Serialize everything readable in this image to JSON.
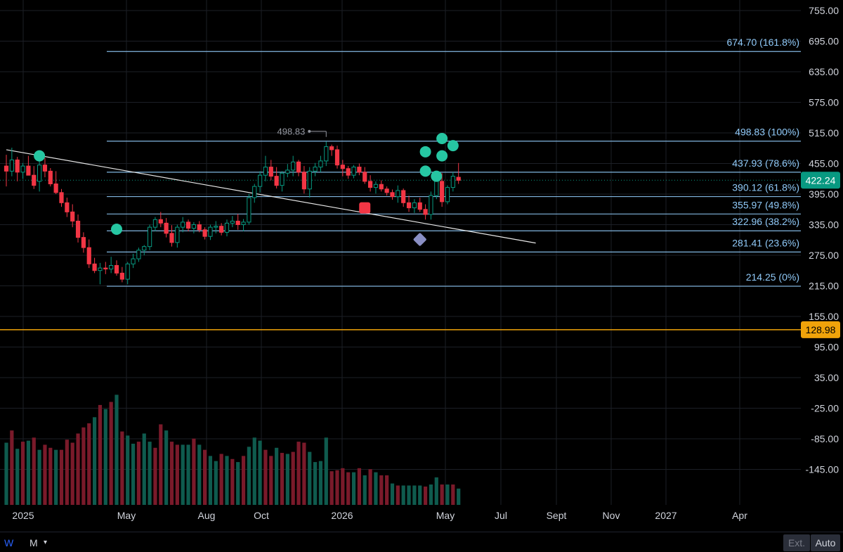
{
  "chart_data": {
    "type": "candlestick",
    "title": "",
    "xlabel": "",
    "ylabel": "",
    "x_ticks": [
      "2025",
      "May",
      "Aug",
      "Oct",
      "2026",
      "May",
      "Jul",
      "Sept",
      "Nov",
      "2027",
      "Apr"
    ],
    "y_ticks": [
      "755.00",
      "695.00",
      "635.00",
      "575.00",
      "515.00",
      "455.00",
      "395.00",
      "335.00",
      "275.00",
      "215.00",
      "155.00",
      "95.00",
      "35.00",
      "-25.00",
      "-85.00",
      "-145.00"
    ],
    "ylim": [
      -170,
      770
    ],
    "grid": true,
    "last_price": "422.24",
    "last_price_color": "#089981",
    "horizontal_line": {
      "value": "128.98",
      "color": "#f0a30a"
    },
    "fibonacci_levels": [
      {
        "label": "674.70 (161.8%)",
        "value": 674.7
      },
      {
        "label": "498.83 (100%)",
        "value": 498.83
      },
      {
        "label": "437.93 (78.6%)",
        "value": 437.93
      },
      {
        "label": "390.12 (61.8%)",
        "value": 390.12
      },
      {
        "label": "355.97 (49.8%)",
        "value": 355.97
      },
      {
        "label": "322.96 (38.2%)",
        "value": 322.96
      },
      {
        "label": "281.41 (23.6%)",
        "value": 281.41
      },
      {
        "label": "214.25 (0%)",
        "value": 214.25
      }
    ],
    "high_annotation": {
      "label": "498.83",
      "value": 498.83
    },
    "trendline": {
      "from": [
        0,
        482
      ],
      "to": [
        96,
        299
      ]
    },
    "candles": [
      [
        0,
        450,
        472,
        410,
        440
      ],
      [
        1,
        440,
        486,
        430,
        462
      ],
      [
        2,
        462,
        468,
        420,
        438
      ],
      [
        3,
        438,
        456,
        425,
        450
      ],
      [
        4,
        450,
        470,
        435,
        432
      ],
      [
        5,
        432,
        450,
        405,
        412
      ],
      [
        6,
        420,
        470,
        400,
        452
      ],
      [
        7,
        452,
        466,
        428,
        440
      ],
      [
        8,
        440,
        446,
        410,
        415
      ],
      [
        9,
        415,
        440,
        395,
        398
      ],
      [
        10,
        398,
        405,
        370,
        378
      ],
      [
        11,
        378,
        388,
        350,
        360
      ],
      [
        12,
        360,
        375,
        330,
        342
      ],
      [
        13,
        342,
        355,
        300,
        310
      ],
      [
        14,
        310,
        320,
        280,
        290
      ],
      [
        15,
        290,
        306,
        250,
        258
      ],
      [
        16,
        258,
        270,
        240,
        245
      ],
      [
        17,
        245,
        260,
        218,
        250
      ],
      [
        18,
        250,
        262,
        238,
        248
      ],
      [
        19,
        248,
        272,
        240,
        255
      ],
      [
        20,
        255,
        265,
        235,
        240
      ],
      [
        21,
        240,
        252,
        222,
        228
      ],
      [
        22,
        228,
        262,
        218,
        258
      ],
      [
        23,
        258,
        278,
        250,
        268
      ],
      [
        24,
        268,
        290,
        262,
        285
      ],
      [
        25,
        285,
        295,
        275,
        292
      ],
      [
        26,
        292,
        335,
        285,
        330
      ],
      [
        27,
        330,
        350,
        322,
        345
      ],
      [
        28,
        345,
        360,
        330,
        338
      ],
      [
        29,
        338,
        348,
        310,
        318
      ],
      [
        30,
        318,
        334,
        292,
        300
      ],
      [
        31,
        300,
        335,
        290,
        330
      ],
      [
        32,
        330,
        350,
        320,
        340
      ],
      [
        33,
        340,
        345,
        322,
        328
      ],
      [
        34,
        328,
        340,
        318,
        335
      ],
      [
        35,
        335,
        342,
        320,
        325
      ],
      [
        36,
        325,
        330,
        306,
        312
      ],
      [
        37,
        312,
        335,
        305,
        330
      ],
      [
        38,
        330,
        342,
        318,
        332
      ],
      [
        39,
        332,
        338,
        314,
        320
      ],
      [
        40,
        320,
        345,
        312,
        338
      ],
      [
        41,
        338,
        352,
        330,
        342
      ],
      [
        42,
        342,
        356,
        325,
        335
      ],
      [
        43,
        335,
        346,
        322,
        340
      ],
      [
        44,
        340,
        395,
        335,
        388
      ],
      [
        45,
        388,
        415,
        378,
        410
      ],
      [
        46,
        410,
        440,
        398,
        432
      ],
      [
        47,
        432,
        470,
        420,
        448
      ],
      [
        48,
        448,
        462,
        422,
        430
      ],
      [
        49,
        430,
        448,
        406,
        412
      ],
      [
        50,
        412,
        440,
        400,
        436
      ],
      [
        51,
        436,
        454,
        428,
        442
      ],
      [
        52,
        442,
        470,
        430,
        458
      ],
      [
        53,
        458,
        462,
        430,
        438
      ],
      [
        54,
        438,
        450,
        396,
        405
      ],
      [
        55,
        405,
        448,
        388,
        440
      ],
      [
        56,
        440,
        456,
        430,
        448
      ],
      [
        57,
        448,
        470,
        438,
        460
      ],
      [
        58,
        460,
        498,
        450,
        488
      ],
      [
        59,
        488,
        492,
        470,
        482
      ],
      [
        60,
        482,
        490,
        445,
        452
      ],
      [
        61,
        452,
        462,
        430,
        445
      ],
      [
        62,
        445,
        450,
        425,
        432
      ],
      [
        63,
        432,
        452,
        426,
        448
      ],
      [
        64,
        448,
        455,
        432,
        438
      ],
      [
        65,
        438,
        448,
        415,
        420
      ],
      [
        66,
        420,
        432,
        400,
        408
      ],
      [
        67,
        408,
        420,
        396,
        414
      ],
      [
        68,
        414,
        422,
        400,
        405
      ],
      [
        69,
        405,
        410,
        392,
        398
      ],
      [
        70,
        398,
        404,
        384,
        390
      ],
      [
        71,
        390,
        412,
        378,
        402
      ],
      [
        72,
        402,
        406,
        370,
        378
      ],
      [
        73,
        378,
        392,
        360,
        368
      ],
      [
        74,
        368,
        385,
        358,
        378
      ],
      [
        75,
        378,
        388,
        360,
        365
      ],
      [
        76,
        365,
        375,
        345,
        355
      ],
      [
        77,
        355,
        400,
        345,
        392
      ],
      [
        78,
        392,
        430,
        385,
        420
      ],
      [
        79,
        420,
        436,
        370,
        380
      ],
      [
        80,
        380,
        412,
        375,
        408
      ],
      [
        81,
        408,
        438,
        400,
        430
      ],
      [
        82,
        428,
        456,
        415,
        422
      ]
    ],
    "volume": [
      [
        0,
        1010,
        1
      ],
      [
        1,
        1130,
        0
      ],
      [
        2,
        950,
        1
      ],
      [
        3,
        1020,
        0
      ],
      [
        4,
        1030,
        1
      ],
      [
        5,
        1060,
        0
      ],
      [
        6,
        940,
        1
      ],
      [
        7,
        990,
        0
      ],
      [
        8,
        960,
        0
      ],
      [
        9,
        940,
        1
      ],
      [
        10,
        940,
        0
      ],
      [
        11,
        1040,
        0
      ],
      [
        12,
        1010,
        0
      ],
      [
        13,
        1100,
        0
      ],
      [
        14,
        1160,
        0
      ],
      [
        15,
        1200,
        0
      ],
      [
        16,
        1260,
        1
      ],
      [
        17,
        1380,
        0
      ],
      [
        18,
        1340,
        1
      ],
      [
        19,
        1410,
        0
      ],
      [
        20,
        1480,
        1
      ],
      [
        21,
        1120,
        0
      ],
      [
        22,
        1080,
        1
      ],
      [
        23,
        1000,
        1
      ],
      [
        24,
        1020,
        0
      ],
      [
        25,
        1100,
        1
      ],
      [
        26,
        1020,
        1
      ],
      [
        27,
        960,
        0
      ],
      [
        28,
        1190,
        0
      ],
      [
        29,
        1130,
        1
      ],
      [
        30,
        1020,
        0
      ],
      [
        31,
        990,
        0
      ],
      [
        32,
        990,
        1
      ],
      [
        33,
        990,
        1
      ],
      [
        34,
        1050,
        0
      ],
      [
        35,
        990,
        1
      ],
      [
        36,
        940,
        0
      ],
      [
        37,
        880,
        1
      ],
      [
        38,
        830,
        1
      ],
      [
        39,
        900,
        0
      ],
      [
        40,
        880,
        1
      ],
      [
        41,
        850,
        0
      ],
      [
        42,
        820,
        1
      ],
      [
        43,
        880,
        0
      ],
      [
        44,
        970,
        1
      ],
      [
        45,
        1060,
        1
      ],
      [
        46,
        1030,
        1
      ],
      [
        47,
        940,
        0
      ],
      [
        48,
        880,
        0
      ],
      [
        49,
        960,
        1
      ],
      [
        50,
        910,
        0
      ],
      [
        51,
        900,
        1
      ],
      [
        52,
        920,
        0
      ],
      [
        53,
        1020,
        0
      ],
      [
        54,
        1010,
        0
      ],
      [
        55,
        920,
        1
      ],
      [
        56,
        820,
        1
      ],
      [
        57,
        830,
        1
      ],
      [
        58,
        1060,
        1
      ],
      [
        59,
        730,
        0
      ],
      [
        60,
        740,
        0
      ],
      [
        61,
        760,
        0
      ],
      [
        62,
        720,
        0
      ],
      [
        63,
        720,
        1
      ],
      [
        64,
        760,
        0
      ],
      [
        65,
        690,
        1
      ],
      [
        66,
        750,
        0
      ],
      [
        67,
        720,
        1
      ],
      [
        68,
        690,
        0
      ],
      [
        69,
        690,
        0
      ],
      [
        70,
        610,
        1
      ],
      [
        71,
        590,
        0
      ],
      [
        72,
        590,
        1
      ],
      [
        73,
        590,
        1
      ],
      [
        74,
        590,
        1
      ],
      [
        75,
        590,
        1
      ],
      [
        76,
        580,
        0
      ],
      [
        77,
        600,
        1
      ],
      [
        78,
        670,
        1
      ],
      [
        79,
        600,
        0
      ],
      [
        80,
        600,
        1
      ],
      [
        81,
        600,
        0
      ],
      [
        82,
        560,
        1
      ]
    ],
    "markers": [
      {
        "kind": "green-circle",
        "index": 6,
        "value": 470
      },
      {
        "kind": "green-circle",
        "index": 20,
        "value": 326
      },
      {
        "kind": "red-square",
        "index": 65,
        "value": 368
      },
      {
        "kind": "purple-diamond",
        "index": 75,
        "value": 306
      },
      {
        "kind": "green-circle",
        "index": 76,
        "value": 478
      },
      {
        "kind": "green-circle",
        "index": 76,
        "value": 440
      },
      {
        "kind": "green-circle",
        "index": 78,
        "value": 430
      },
      {
        "kind": "green-circle",
        "index": 79,
        "value": 504
      },
      {
        "kind": "green-circle",
        "index": 79,
        "value": 470
      },
      {
        "kind": "green-circle",
        "index": 81,
        "value": 490
      }
    ],
    "marker_colors": {
      "green-circle": "#26c6a2",
      "red-square": "#f23645",
      "purple-diamond": "#8a8fc4"
    },
    "candle_colors": {
      "up": "#089981",
      "down": "#f23645"
    }
  },
  "toolbar": {
    "interval_w": "W",
    "interval_m": "M",
    "caret": "▾",
    "ext": "Ext.",
    "auto": "Auto"
  }
}
